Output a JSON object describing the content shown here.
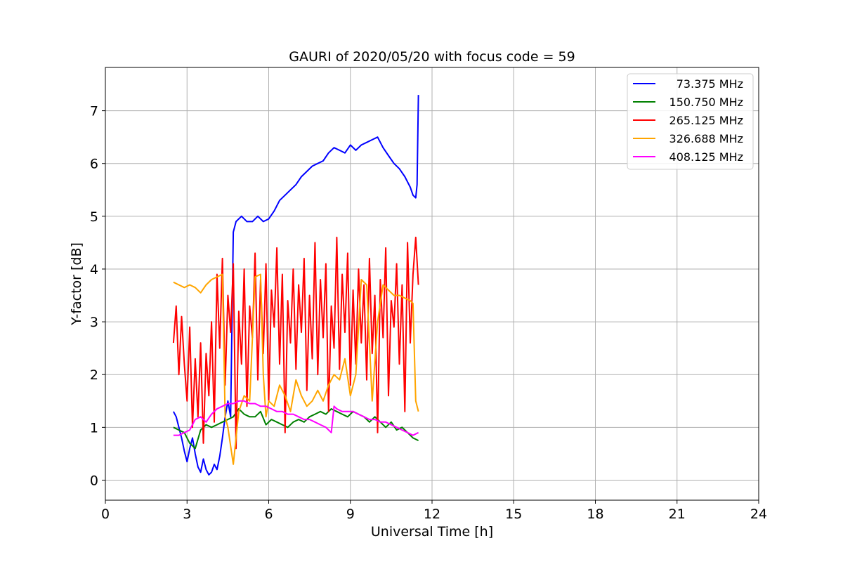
{
  "chart_data": {
    "type": "line",
    "title": "GAURI of 2020/05/20 with focus code = 59",
    "xlabel": "Universal Time [h]",
    "ylabel": "Y-factor [dB]",
    "xlim": [
      0,
      24
    ],
    "ylim": [
      -0.38,
      7.82
    ],
    "xticks": [
      0,
      3,
      6,
      9,
      12,
      15,
      18,
      21,
      24
    ],
    "xtick_labels": [
      "0",
      "3",
      "6",
      "9",
      "12",
      "15",
      "18",
      "21",
      "24"
    ],
    "yticks": [
      0,
      1,
      2,
      3,
      4,
      5,
      6,
      7
    ],
    "ytick_labels": [
      "0",
      "1",
      "2",
      "3",
      "4",
      "5",
      "6",
      "7"
    ],
    "grid": true,
    "legend_position": "top-right",
    "series": [
      {
        "name": "73.375 MHz",
        "color": "#0000ff",
        "x": [
          2.5,
          2.6,
          2.7,
          2.8,
          2.9,
          3.0,
          3.1,
          3.2,
          3.3,
          3.4,
          3.5,
          3.6,
          3.7,
          3.8,
          3.9,
          4.0,
          4.1,
          4.2,
          4.3,
          4.4,
          4.5,
          4.6,
          4.7,
          4.8,
          5.0,
          5.2,
          5.4,
          5.6,
          5.8,
          6.0,
          6.2,
          6.4,
          6.6,
          6.8,
          7.0,
          7.2,
          7.4,
          7.6,
          7.8,
          8.0,
          8.2,
          8.4,
          8.6,
          8.8,
          9.0,
          9.2,
          9.4,
          9.6,
          9.8,
          10.0,
          10.2,
          10.4,
          10.6,
          10.8,
          11.0,
          11.2,
          11.3,
          11.4,
          11.45,
          11.5
        ],
        "y": [
          1.3,
          1.2,
          1.0,
          0.8,
          0.55,
          0.35,
          0.6,
          0.8,
          0.5,
          0.25,
          0.15,
          0.4,
          0.2,
          0.1,
          0.15,
          0.3,
          0.2,
          0.45,
          0.8,
          1.2,
          1.5,
          1.2,
          4.7,
          4.9,
          5.0,
          4.9,
          4.9,
          5.0,
          4.9,
          4.95,
          5.1,
          5.3,
          5.4,
          5.5,
          5.6,
          5.75,
          5.85,
          5.95,
          6.0,
          6.05,
          6.2,
          6.3,
          6.25,
          6.2,
          6.35,
          6.25,
          6.35,
          6.4,
          6.45,
          6.5,
          6.3,
          6.15,
          6.0,
          5.9,
          5.75,
          5.55,
          5.4,
          5.35,
          5.6,
          7.3
        ]
      },
      {
        "name": "150.750 MHz",
        "color": "#008000",
        "x": [
          2.5,
          2.7,
          2.9,
          3.1,
          3.3,
          3.5,
          3.7,
          3.9,
          4.1,
          4.3,
          4.5,
          4.7,
          4.9,
          5.1,
          5.3,
          5.5,
          5.7,
          5.9,
          6.1,
          6.3,
          6.5,
          6.7,
          6.9,
          7.1,
          7.3,
          7.5,
          7.7,
          7.9,
          8.1,
          8.3,
          8.5,
          8.7,
          8.9,
          9.1,
          9.3,
          9.5,
          9.7,
          9.9,
          10.1,
          10.3,
          10.5,
          10.7,
          10.9,
          11.1,
          11.3,
          11.5
        ],
        "y": [
          1.0,
          0.95,
          0.9,
          0.7,
          0.6,
          0.95,
          1.05,
          1.0,
          1.05,
          1.1,
          1.15,
          1.2,
          1.35,
          1.25,
          1.2,
          1.2,
          1.3,
          1.05,
          1.15,
          1.1,
          1.05,
          1.0,
          1.1,
          1.15,
          1.1,
          1.2,
          1.25,
          1.3,
          1.25,
          1.35,
          1.3,
          1.25,
          1.2,
          1.3,
          1.25,
          1.2,
          1.1,
          1.2,
          1.1,
          1.0,
          1.1,
          0.95,
          1.0,
          0.9,
          0.8,
          0.75
        ]
      },
      {
        "name": "265.125 MHz",
        "color": "#ff0000",
        "x": [
          2.5,
          2.6,
          2.7,
          2.8,
          2.9,
          3.0,
          3.1,
          3.2,
          3.3,
          3.4,
          3.5,
          3.6,
          3.7,
          3.8,
          3.9,
          4.0,
          4.1,
          4.2,
          4.3,
          4.4,
          4.5,
          4.6,
          4.7,
          4.8,
          4.9,
          5.0,
          5.1,
          5.2,
          5.3,
          5.4,
          5.5,
          5.6,
          5.7,
          5.8,
          5.9,
          6.0,
          6.1,
          6.2,
          6.3,
          6.4,
          6.5,
          6.6,
          6.7,
          6.8,
          6.9,
          7.0,
          7.1,
          7.2,
          7.3,
          7.4,
          7.5,
          7.6,
          7.7,
          7.8,
          7.9,
          8.0,
          8.1,
          8.2,
          8.3,
          8.4,
          8.5,
          8.6,
          8.7,
          8.8,
          8.9,
          9.0,
          9.1,
          9.2,
          9.3,
          9.4,
          9.5,
          9.6,
          9.7,
          9.8,
          9.9,
          10.0,
          10.1,
          10.2,
          10.3,
          10.4,
          10.5,
          10.6,
          10.7,
          10.8,
          10.9,
          11.0,
          11.1,
          11.2,
          11.3,
          11.4,
          11.5
        ],
        "y": [
          2.6,
          3.3,
          2.0,
          3.1,
          2.2,
          1.5,
          2.9,
          1.0,
          2.3,
          1.2,
          2.6,
          0.7,
          2.4,
          1.6,
          3.0,
          1.1,
          3.9,
          2.5,
          4.2,
          1.8,
          3.5,
          2.8,
          4.1,
          0.6,
          3.2,
          2.2,
          4.0,
          1.4,
          3.3,
          2.7,
          4.3,
          1.9,
          3.8,
          2.4,
          4.1,
          1.5,
          3.6,
          2.9,
          4.4,
          2.2,
          3.9,
          0.9,
          3.4,
          2.6,
          4.0,
          2.1,
          3.7,
          2.8,
          4.2,
          1.7,
          3.5,
          2.3,
          4.5,
          2.0,
          3.8,
          2.7,
          4.1,
          1.3,
          3.3,
          2.5,
          4.6,
          2.1,
          3.9,
          2.8,
          4.3,
          1.8,
          3.6,
          2.2,
          4.0,
          2.6,
          3.7,
          1.9,
          4.2,
          2.4,
          3.5,
          0.9,
          3.8,
          2.7,
          4.4,
          1.6,
          3.4,
          2.9,
          4.1,
          2.2,
          3.7,
          1.3,
          4.5,
          2.6,
          3.9,
          4.6,
          3.7
        ]
      },
      {
        "name": "326.688 MHz",
        "color": "#ffa500",
        "x": [
          2.5,
          2.7,
          2.9,
          3.1,
          3.3,
          3.5,
          3.7,
          3.9,
          4.1,
          4.3,
          4.4,
          4.5,
          4.7,
          4.9,
          5.1,
          5.3,
          5.5,
          5.7,
          5.8,
          5.9,
          6.0,
          6.2,
          6.4,
          6.6,
          6.8,
          7.0,
          7.2,
          7.4,
          7.6,
          7.8,
          8.0,
          8.2,
          8.4,
          8.6,
          8.8,
          9.0,
          9.2,
          9.4,
          9.6,
          9.8,
          10.0,
          10.2,
          10.4,
          10.6,
          10.8,
          11.0,
          11.2,
          11.3,
          11.4,
          11.5
        ],
        "y": [
          3.75,
          3.7,
          3.65,
          3.7,
          3.65,
          3.55,
          3.7,
          3.8,
          3.85,
          3.9,
          1.2,
          1.0,
          0.3,
          1.3,
          1.6,
          1.5,
          3.85,
          3.9,
          2.0,
          1.2,
          1.5,
          1.4,
          1.8,
          1.6,
          1.3,
          1.9,
          1.6,
          1.4,
          1.5,
          1.7,
          1.5,
          1.8,
          2.0,
          1.9,
          2.3,
          1.6,
          2.0,
          3.8,
          3.7,
          1.5,
          3.0,
          3.7,
          3.6,
          3.5,
          3.5,
          3.45,
          3.4,
          3.35,
          1.5,
          1.3
        ]
      },
      {
        "name": "408.125 MHz",
        "color": "#ff00ff",
        "x": [
          2.5,
          2.7,
          2.9,
          3.1,
          3.3,
          3.5,
          3.7,
          3.9,
          4.1,
          4.3,
          4.5,
          4.7,
          4.9,
          5.1,
          5.3,
          5.5,
          5.7,
          5.9,
          6.1,
          6.3,
          6.5,
          6.7,
          6.9,
          7.1,
          7.3,
          7.5,
          7.7,
          7.9,
          8.1,
          8.3,
          8.4,
          8.5,
          8.7,
          8.9,
          9.1,
          9.3,
          9.5,
          9.7,
          9.9,
          10.1,
          10.3,
          10.5,
          10.7,
          10.9,
          11.1,
          11.3,
          11.5
        ],
        "y": [
          0.85,
          0.85,
          0.9,
          0.95,
          1.15,
          1.2,
          1.1,
          1.25,
          1.35,
          1.4,
          1.45,
          1.45,
          1.5,
          1.5,
          1.45,
          1.45,
          1.4,
          1.4,
          1.35,
          1.3,
          1.3,
          1.25,
          1.25,
          1.2,
          1.15,
          1.15,
          1.1,
          1.05,
          1.0,
          0.9,
          1.4,
          1.35,
          1.3,
          1.3,
          1.3,
          1.25,
          1.2,
          1.15,
          1.15,
          1.1,
          1.1,
          1.05,
          1.0,
          0.95,
          0.9,
          0.85,
          0.9
        ]
      }
    ]
  }
}
